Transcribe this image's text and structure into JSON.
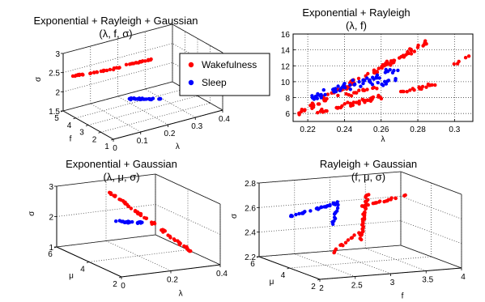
{
  "colors": {
    "wakefulness": "#ff0000",
    "sleep": "#0000ff"
  },
  "legend": {
    "placement": "top-center",
    "entries": [
      {
        "label": "Wakefulness",
        "color": "#ff0000"
      },
      {
        "label": "Sleep",
        "color": "#0000ff"
      }
    ]
  },
  "chart_data": [
    {
      "type": "scatter",
      "projection": "3d",
      "title": "Exponential + Rayleigh + Gaussian",
      "subtitle": "(λ, f, σ)",
      "xlabel": "λ",
      "ylabel": "f",
      "zlabel": "σ",
      "xlim": [
        0,
        0.4
      ],
      "ylim": [
        1,
        5
      ],
      "zlim": [
        1.5,
        3
      ],
      "xticks": [
        "0",
        "0.1",
        "0.2",
        "0.3",
        "0.4"
      ],
      "yticks": [
        "1",
        "2",
        "3",
        "4",
        "5"
      ],
      "zticks": [
        "1.5",
        "2",
        "2.5",
        "3"
      ],
      "grid": true,
      "series": [
        {
          "name": "Wakefulness",
          "color": "#ff0000",
          "clusters": [
            {
              "from": [
                0.02,
                4.6,
                2.45
              ],
              "to": [
                0.2,
                4.3,
                2.4
              ],
              "n": 28,
              "spread": 0.012
            },
            {
              "from": [
                0.2,
                4.3,
                2.45
              ],
              "to": [
                0.28,
                4.0,
                2.5
              ],
              "n": 18,
              "spread": 0.012
            }
          ]
        },
        {
          "name": "Sleep",
          "color": "#0000ff",
          "clusters": [
            {
              "from": [
                0.12,
                2.5,
                2.05
              ],
              "to": [
                0.22,
                2.0,
                1.95
              ],
              "n": 30,
              "spread": 0.012
            }
          ]
        }
      ]
    },
    {
      "type": "scatter",
      "projection": "2d",
      "title": "Exponential + Rayleigh",
      "subtitle": "(λ, f)",
      "xlabel": "λ",
      "ylabel": "",
      "xlim": [
        0.212,
        0.31
      ],
      "ylim": [
        5,
        16
      ],
      "xticks": [
        "0.22",
        "0.24",
        "0.26",
        "0.28",
        "0.3"
      ],
      "yticks": [
        "6",
        "8",
        "10",
        "12",
        "14",
        "16"
      ],
      "grid": true,
      "series": [
        {
          "name": "Wakefulness",
          "color": "#ff0000",
          "clusters": [
            {
              "from": [
                0.215,
                6.0
              ],
              "to": [
                0.285,
                15.0
              ],
              "n": 90,
              "spread": 0.15
            },
            {
              "from": [
                0.225,
                6.2
              ],
              "to": [
                0.29,
                9.7
              ],
              "n": 60,
              "spread": 0.1
            },
            {
              "from": [
                0.235,
                8.0
              ],
              "to": [
                0.26,
                9.5
              ],
              "n": 15,
              "spread": 0.1
            },
            {
              "from": [
                0.298,
                12.0
              ],
              "to": [
                0.308,
                13.2
              ],
              "n": 5,
              "spread": 0.05
            }
          ]
        },
        {
          "name": "Sleep",
          "color": "#0000ff",
          "clusters": [
            {
              "from": [
                0.222,
                8.0
              ],
              "to": [
                0.27,
                11.5
              ],
              "n": 55,
              "spread": 0.2
            },
            {
              "from": [
                0.255,
                9.5
              ],
              "to": [
                0.268,
                10.2
              ],
              "n": 10,
              "spread": 0.1
            }
          ]
        }
      ]
    },
    {
      "type": "scatter",
      "projection": "3d",
      "title": "Exponential + Gaussian",
      "subtitle": "(λ, μ, σ)",
      "xlabel": "λ",
      "ylabel": "μ",
      "zlabel": "σ",
      "xlim": [
        0,
        0.4
      ],
      "ylim": [
        2,
        6
      ],
      "zlim": [
        1,
        3
      ],
      "xticks": [
        "0",
        "0.2",
        "0.4"
      ],
      "yticks": [
        "2",
        "4",
        "6"
      ],
      "zticks": [
        "1",
        "2",
        "3"
      ],
      "grid": true,
      "series": [
        {
          "name": "Wakefulness",
          "color": "#ff0000",
          "clusters": [
            {
              "from": [
                0.15,
                5.0,
                2.9
              ],
              "to": [
                0.32,
                2.4,
                1.35
              ],
              "n": 60,
              "spread": 0.015
            }
          ]
        },
        {
          "name": "Sleep",
          "color": "#0000ff",
          "clusters": [
            {
              "from": [
                0.14,
                4.6,
                2.05
              ],
              "to": [
                0.22,
                4.1,
                2.05
              ],
              "n": 22,
              "spread": 0.012
            }
          ]
        }
      ]
    },
    {
      "type": "scatter",
      "projection": "3d",
      "title": "Rayleigh + Gaussian",
      "subtitle": "(f, μ, σ)",
      "xlabel": "f",
      "ylabel": "μ",
      "zlabel": "σ",
      "xlim": [
        2,
        4
      ],
      "ylim": [
        2,
        6
      ],
      "zlim": [
        2.2,
        2.8
      ],
      "xticks": [
        "2",
        "2.5",
        "3",
        "3.5",
        "4"
      ],
      "yticks": [
        "2",
        "4",
        "6"
      ],
      "zticks": [
        "2.2",
        "2.4",
        "2.6",
        "2.8"
      ],
      "grid": true,
      "series": [
        {
          "name": "Wakefulness",
          "color": "#ff0000",
          "clusters": [
            {
              "from": [
                3.0,
                4.0,
                2.35
              ],
              "to": [
                3.1,
                4.0,
                2.75
              ],
              "n": 45,
              "spread": 0.012
            },
            {
              "from": [
                3.0,
                4.0,
                2.65
              ],
              "to": [
                3.7,
                4.0,
                2.72
              ],
              "n": 25,
              "spread": 0.012
            },
            {
              "from": [
                2.6,
                4.0,
                2.3
              ],
              "to": [
                3.0,
                4.0,
                2.45
              ],
              "n": 12,
              "spread": 0.012
            }
          ]
        },
        {
          "name": "Sleep",
          "color": "#0000ff",
          "clusters": [
            {
              "from": [
                2.0,
                4.0,
                2.62
              ],
              "to": [
                2.7,
                4.0,
                2.7
              ],
              "n": 30,
              "spread": 0.012
            },
            {
              "from": [
                2.6,
                4.0,
                2.5
              ],
              "to": [
                2.7,
                4.0,
                2.72
              ],
              "n": 12,
              "spread": 0.01
            }
          ]
        }
      ]
    }
  ]
}
